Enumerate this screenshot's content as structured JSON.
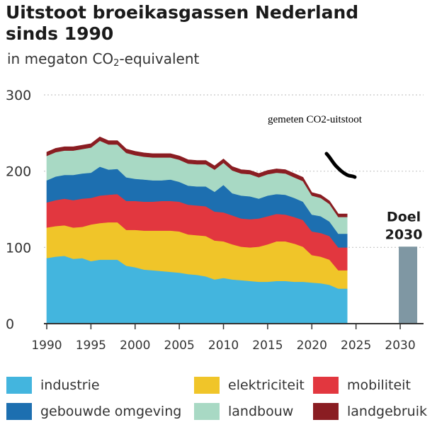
{
  "title_line1": "Uitstoot broeikasgassen Nederland",
  "title_line2": "sinds 1990",
  "subtitle_pre": "in megaton CO",
  "subtitle_sub": "2",
  "subtitle_post": "-equivalent",
  "annotation": "gemeten CO2-uitstoot",
  "colors": {
    "industrie": "#43b5de",
    "elektriciteit": "#f0c529",
    "mobiliteit": "#e2373f",
    "gebouwde omgeving": "#1d6fb0",
    "landbouw": "#a8d9c4",
    "landgebruik": "#8a1d22",
    "goal": "#7f97a3",
    "grid": "#c8c8c8",
    "axis": "#333333"
  },
  "chart_data": {
    "type": "area",
    "stacked": true,
    "x": [
      1990,
      1991,
      1992,
      1993,
      1994,
      1995,
      1996,
      1997,
      1998,
      1999,
      2000,
      2001,
      2002,
      2003,
      2004,
      2005,
      2006,
      2007,
      2008,
      2009,
      2010,
      2011,
      2012,
      2013,
      2014,
      2015,
      2016,
      2017,
      2018,
      2019,
      2020,
      2021,
      2022,
      2023,
      2024
    ],
    "series": [
      {
        "name": "industrie",
        "values": [
          86,
          88,
          89,
          85,
          86,
          82,
          84,
          84,
          84,
          76,
          74,
          71,
          70,
          69,
          68,
          67,
          65,
          64,
          62,
          58,
          60,
          58,
          57,
          56,
          55,
          55,
          56,
          56,
          55,
          55,
          54,
          53,
          51,
          46,
          46
        ]
      },
      {
        "name": "elektriciteit",
        "values": [
          40,
          40,
          40,
          41,
          41,
          48,
          48,
          49,
          49,
          47,
          49,
          51,
          52,
          53,
          54,
          54,
          52,
          52,
          53,
          51,
          48,
          46,
          44,
          44,
          46,
          49,
          52,
          52,
          50,
          46,
          36,
          35,
          33,
          24,
          24
        ]
      },
      {
        "name": "mobiliteit",
        "values": [
          33,
          34,
          35,
          36,
          37,
          35,
          36,
          36,
          37,
          38,
          38,
          38,
          38,
          39,
          39,
          39,
          39,
          39,
          39,
          38,
          38,
          38,
          37,
          37,
          37,
          37,
          36,
          35,
          35,
          35,
          31,
          31,
          31,
          30,
          30
        ]
      },
      {
        "name": "gebouwde omgeving",
        "values": [
          29,
          31,
          31,
          33,
          33,
          33,
          38,
          33,
          33,
          31,
          29,
          29,
          28,
          27,
          28,
          26,
          25,
          25,
          26,
          26,
          36,
          29,
          30,
          30,
          26,
          27,
          26,
          26,
          25,
          24,
          22,
          22,
          19,
          18,
          18
        ]
      },
      {
        "name": "landbouw",
        "values": [
          32,
          32,
          32,
          32,
          32,
          33,
          34,
          33,
          32,
          32,
          31,
          30,
          30,
          30,
          29,
          29,
          29,
          29,
          29,
          29,
          29,
          30,
          29,
          29,
          28,
          28,
          28,
          28,
          27,
          27,
          25,
          24,
          23,
          22,
          22
        ]
      },
      {
        "name": "landgebruik",
        "values": [
          5,
          5,
          5,
          5,
          5,
          5,
          5,
          5,
          5,
          5,
          5,
          5,
          5,
          5,
          5,
          5,
          5,
          5,
          5,
          5,
          5,
          5,
          5,
          5,
          5,
          5,
          5,
          5,
          5,
          5,
          4,
          4,
          4,
          4,
          4
        ]
      }
    ],
    "goal": {
      "label_line1": "Doel",
      "label_line2": "2030",
      "year": 2030,
      "value": 101
    },
    "xlim": [
      1990,
      2032
    ],
    "ylim": [
      0,
      300
    ],
    "yticks": [
      0,
      100,
      200,
      300
    ],
    "xticks": [
      1990,
      1995,
      2000,
      2005,
      2010,
      2015,
      2020,
      2025,
      2030
    ],
    "grid": true,
    "legend_position": "bottom"
  },
  "legend": [
    {
      "key": "industrie",
      "label": "industrie"
    },
    {
      "key": "elektriciteit",
      "label": "elektriciteit"
    },
    {
      "key": "mobiliteit",
      "label": "mobiliteit"
    },
    {
      "key": "gebouwde omgeving",
      "label": "gebouwde omgeving"
    },
    {
      "key": "landbouw",
      "label": "landbouw"
    },
    {
      "key": "landgebruik",
      "label": "landgebruik"
    }
  ]
}
